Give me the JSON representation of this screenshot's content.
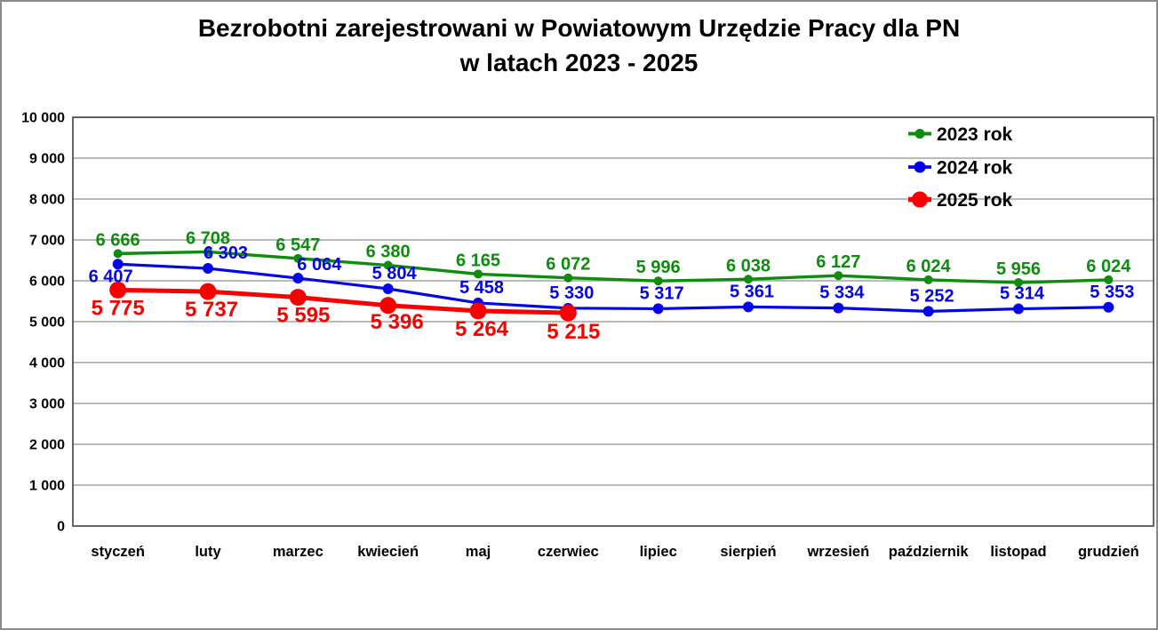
{
  "title": {
    "line1": "Bezrobotni zarejestrowani w Powiatowym Urzędzie Pracy dla PN",
    "line2": "w latach 2023 - 2025"
  },
  "chart_data": {
    "type": "line",
    "title": "Bezrobotni zarejestrowani w Powiatowym Urzędzie Pracy dla PN w latach 2023 - 2025",
    "categories": [
      "styczeń",
      "luty",
      "marzec",
      "kwiecień",
      "maj",
      "czerwiec",
      "lipiec",
      "sierpień",
      "wrzesień",
      "październik",
      "listopad",
      "grudzień"
    ],
    "series": [
      {
        "name": "2023 rok",
        "color": "#0e8c0e",
        "values": [
          6666,
          6708,
          6547,
          6380,
          6165,
          6072,
          5996,
          6038,
          6127,
          6024,
          5956,
          6024
        ],
        "labels": [
          "6 666",
          "6 708",
          "6 547",
          "6 380",
          "6 165",
          "6 072",
          "5 996",
          "6 038",
          "6 127",
          "6 024",
          "5 956",
          "6 024"
        ]
      },
      {
        "name": "2024 rok",
        "color": "#0404e8",
        "values": [
          6407,
          6303,
          6064,
          5804,
          5458,
          5330,
          5317,
          5361,
          5334,
          5252,
          5314,
          5353
        ],
        "labels": [
          "6 407",
          "6 303",
          "6 064",
          "5 804",
          "5 458",
          "5 330",
          "5 317",
          "5 361",
          "5 334",
          "5 252",
          "5 314",
          "5 353"
        ]
      },
      {
        "name": "2025 rok",
        "color": "#f80000",
        "values": [
          5775,
          5737,
          5595,
          5396,
          5264,
          5215
        ],
        "labels": [
          "5 775",
          "5 737",
          "5 595",
          "5 396",
          "5 264",
          "5 215"
        ]
      }
    ],
    "ylim": [
      0,
      10000
    ],
    "ytick_step": 1000,
    "ytick_labels": [
      "0",
      "1 000",
      "2 000",
      "3 000",
      "4 000",
      "5 000",
      "6 000",
      "7 000",
      "8 000",
      "9 000",
      "10 000"
    ],
    "xlabel": "",
    "ylabel": "",
    "grid": true,
    "legend_position": "top-right"
  }
}
